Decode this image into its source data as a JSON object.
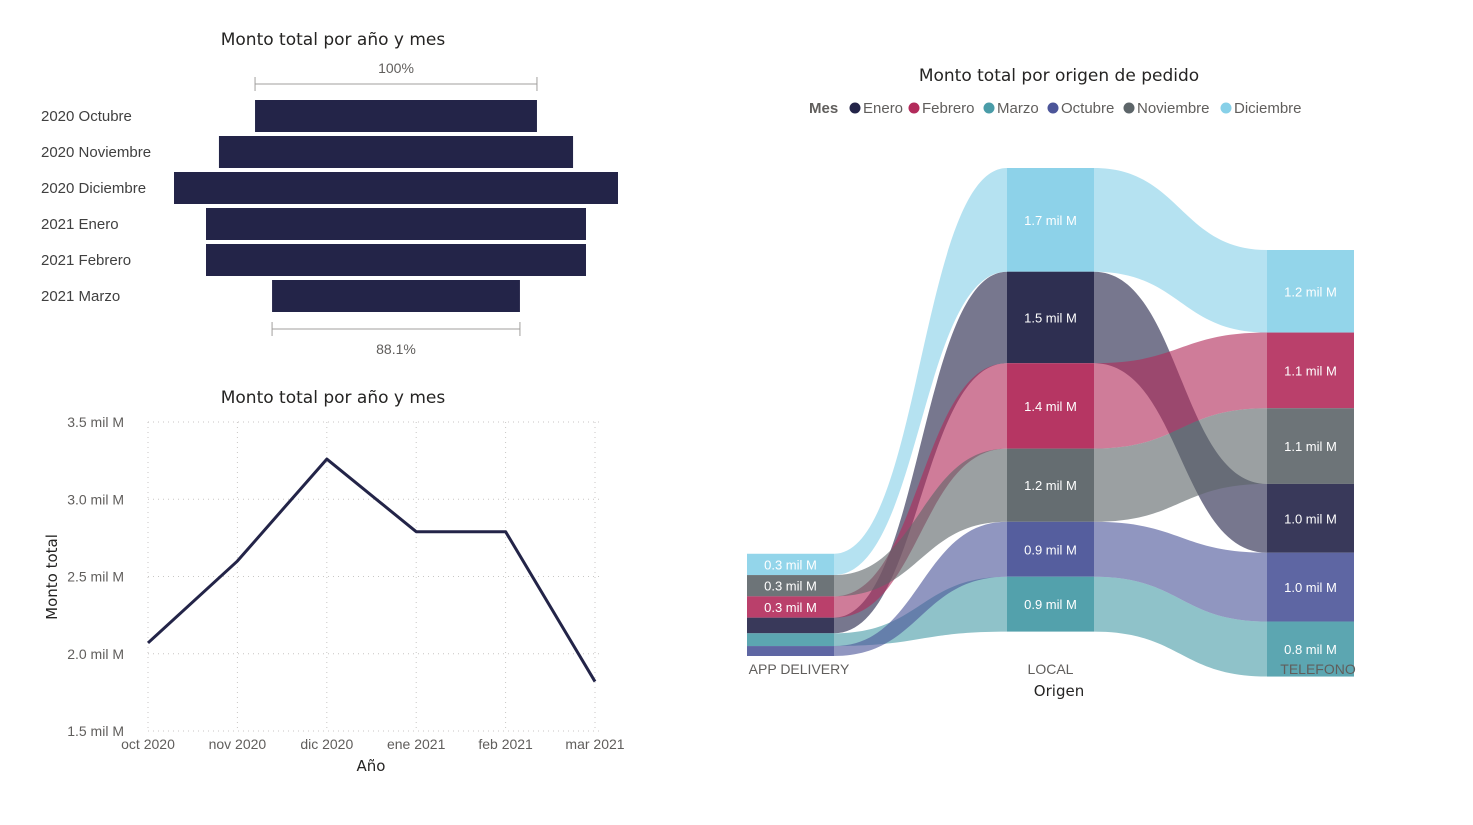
{
  "chart_data": [
    {
      "type": "bar",
      "subtype": "funnel",
      "title": "Monto total por año y mes",
      "categories": [
        "2020 Octubre",
        "2020 Noviembre",
        "2020 Diciembre",
        "2021 Enero",
        "2021 Febrero",
        "2021 Marzo"
      ],
      "values": [
        2.07,
        2.6,
        3.26,
        2.79,
        2.79,
        1.82
      ],
      "top_percent_label": "100%",
      "bottom_percent_label": "88.1%",
      "bar_color": "#232448"
    },
    {
      "type": "line",
      "title": "Monto total por año y mes",
      "xlabel": "Año",
      "ylabel": "Monto total",
      "categories": [
        "oct 2020",
        "nov 2020",
        "dic 2020",
        "ene 2021",
        "feb 2021",
        "mar 2021"
      ],
      "values": [
        2.07,
        2.6,
        3.26,
        2.79,
        2.79,
        1.82
      ],
      "y_ticks": [
        {
          "value": 1.5,
          "label": "1.5 mil M"
        },
        {
          "value": 2.0,
          "label": "2.0 mil M"
        },
        {
          "value": 2.5,
          "label": "2.5 mil M"
        },
        {
          "value": 3.0,
          "label": "3.0 mil M"
        },
        {
          "value": 3.5,
          "label": "3.5 mil M"
        }
      ],
      "ylim": [
        1.5,
        3.5
      ],
      "line_color": "#232448"
    },
    {
      "type": "sankey",
      "title": "Monto total por origen de pedido",
      "legend_title": "Mes",
      "xlabel": "Origen",
      "series": [
        {
          "name": "Enero",
          "color": "#232448"
        },
        {
          "name": "Febrero",
          "color": "#b22b5b"
        },
        {
          "name": "Marzo",
          "color": "#4a9ca8"
        },
        {
          "name": "Octubre",
          "color": "#4c5599"
        },
        {
          "name": "Noviembre",
          "color": "#5d6569"
        },
        {
          "name": "Diciembre",
          "color": "#87d0e8"
        }
      ],
      "origins": [
        "APP DELIVERY",
        "LOCAL",
        "TELEFONO"
      ],
      "unit": "mil M",
      "flows": [
        {
          "origin": "APP DELIVERY",
          "month": "Diciembre",
          "value": 0.3,
          "label": "0.3 mil M"
        },
        {
          "origin": "APP DELIVERY",
          "month": "Noviembre",
          "value": 0.3,
          "label": "0.3 mil M"
        },
        {
          "origin": "APP DELIVERY",
          "month": "Febrero",
          "value": 0.3,
          "label": "0.3 mil M"
        },
        {
          "origin": "APP DELIVERY",
          "month": "Enero",
          "value": 0.22,
          "label": ""
        },
        {
          "origin": "APP DELIVERY",
          "month": "Marzo",
          "value": 0.18,
          "label": ""
        },
        {
          "origin": "APP DELIVERY",
          "month": "Octubre",
          "value": 0.14,
          "label": ""
        },
        {
          "origin": "LOCAL",
          "month": "Diciembre",
          "value": 1.7,
          "label": "1.7 mil M"
        },
        {
          "origin": "LOCAL",
          "month": "Enero",
          "value": 1.5,
          "label": "1.5 mil M"
        },
        {
          "origin": "LOCAL",
          "month": "Febrero",
          "value": 1.4,
          "label": "1.4 mil M"
        },
        {
          "origin": "LOCAL",
          "month": "Noviembre",
          "value": 1.2,
          "label": "1.2 mil M"
        },
        {
          "origin": "LOCAL",
          "month": "Octubre",
          "value": 0.9,
          "label": "0.9 mil M"
        },
        {
          "origin": "LOCAL",
          "month": "Marzo",
          "value": 0.9,
          "label": "0.9 mil M"
        },
        {
          "origin": "TELEFONO",
          "month": "Diciembre",
          "value": 1.2,
          "label": "1.2 mil M"
        },
        {
          "origin": "TELEFONO",
          "month": "Febrero",
          "value": 1.1,
          "label": "1.1 mil M"
        },
        {
          "origin": "TELEFONO",
          "month": "Noviembre",
          "value": 1.1,
          "label": "1.1 mil M"
        },
        {
          "origin": "TELEFONO",
          "month": "Enero",
          "value": 1.0,
          "label": "1.0 mil M"
        },
        {
          "origin": "TELEFONO",
          "month": "Octubre",
          "value": 1.0,
          "label": "1.0 mil M"
        },
        {
          "origin": "TELEFONO",
          "month": "Marzo",
          "value": 0.8,
          "label": "0.8 mil M"
        }
      ]
    }
  ]
}
